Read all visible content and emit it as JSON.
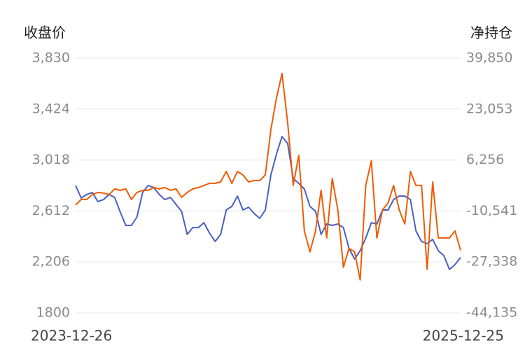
{
  "chart_data": {
    "type": "line",
    "ylabel": "收盘价",
    "y2label": "净持仓",
    "categories": [
      "2023-12-26",
      null,
      null,
      null,
      null,
      null,
      null,
      null,
      null,
      null,
      null,
      null,
      null,
      null,
      null,
      null,
      null,
      null,
      null,
      null,
      null,
      null,
      null,
      null,
      null,
      null,
      null,
      null,
      null,
      null,
      null,
      null,
      null,
      null,
      null,
      null,
      null,
      null,
      null,
      null,
      null,
      null,
      null,
      null,
      null,
      null,
      null,
      null,
      null,
      null,
      null,
      null,
      null,
      null,
      null,
      null,
      null,
      null,
      null,
      null,
      null,
      null,
      null,
      null,
      null,
      null,
      null,
      null,
      null,
      "2025-12-25"
    ],
    "series": [
      {
        "color": "#4a5fc1",
        "values": [
          2815,
          2715,
          2743,
          2759,
          2687,
          2703,
          2743,
          2720,
          2603,
          2497,
          2497,
          2564,
          2759,
          2815,
          2798,
          2743,
          2703,
          2720,
          2664,
          2609,
          2425,
          2480,
          2480,
          2519,
          2436,
          2369,
          2425,
          2620,
          2648,
          2731,
          2620,
          2642,
          2592,
          2553,
          2620,
          2899,
          3066,
          3205,
          3150,
          2871,
          2832,
          2787,
          2648,
          2609,
          2425,
          2508,
          2497,
          2508,
          2480,
          2313,
          2229,
          2296,
          2397,
          2519,
          2508,
          2620,
          2620,
          2703,
          2731,
          2731,
          2703,
          2453,
          2369,
          2352,
          2386,
          2296,
          2257,
          2146,
          2185,
          2241
        ]
      },
      {
        "color": "#f05a00",
        "axis": "y2",
        "values": [
          -8576,
          -6731,
          -6731,
          -5117,
          -4425,
          -4656,
          -5117,
          -3272,
          -3733,
          -3272,
          -6731,
          -4425,
          -3733,
          -3733,
          -2811,
          -3272,
          -2811,
          -3733,
          -3272,
          -6039,
          -4425,
          -3272,
          -2811,
          -2119,
          -1427,
          -1427,
          -966,
          2493,
          -1427,
          2493,
          1340,
          -966,
          -505,
          -505,
          1340,
          16329,
          26706,
          34777,
          18635,
          -2119,
          7797,
          -17108,
          -24026,
          -17108,
          -3733,
          -19414,
          187,
          -10190,
          -29099,
          -22873,
          -24026,
          -33250,
          -2119,
          5952,
          -19414,
          -10190,
          -7884,
          -2119,
          -10190,
          -14802,
          2493,
          -2119,
          -2119,
          -29791,
          -966,
          -19414,
          -19414,
          -19414,
          -17108,
          -23500
        ]
      }
    ],
    "ylim": [
      1800,
      3830
    ],
    "yticks": [
      1800,
      {
        "value": 2206,
        "label": "2,206"
      },
      {
        "value": 2612,
        "label": "2,612"
      },
      {
        "value": 3018,
        "label": "3,018"
      },
      {
        "value": 3424,
        "label": "3,424"
      },
      {
        "value": 3830,
        "label": "3,830"
      }
    ],
    "y2lim": [
      -44135,
      39850
    ],
    "y2ticks": [
      {
        "value": -44135,
        "label": "-44,135"
      },
      {
        "value": -27338,
        "label": "-27,338"
      },
      {
        "value": -10541,
        "label": "-10,541"
      },
      {
        "value": 6256,
        "label": "6,256"
      },
      {
        "value": 23053,
        "label": "23,053"
      },
      {
        "value": 39850,
        "label": "39,850"
      }
    ],
    "grid": true
  }
}
